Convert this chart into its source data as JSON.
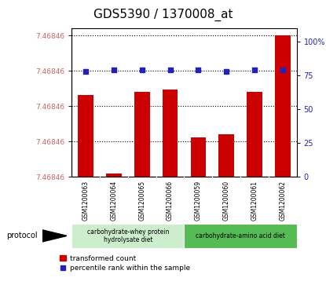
{
  "title": "GDS5390 / 1370008_at",
  "samples": [
    "GSM1200063",
    "GSM1200064",
    "GSM1200065",
    "GSM1200066",
    "GSM1200059",
    "GSM1200060",
    "GSM1200061",
    "GSM1200062"
  ],
  "bar_heights": [
    0.58,
    0.02,
    0.6,
    0.62,
    0.28,
    0.3,
    0.6,
    1.0
  ],
  "percentile_values": [
    78,
    79,
    79,
    79,
    79,
    78,
    79,
    79
  ],
  "ytick_positions": [
    0.0,
    0.25,
    0.5,
    0.75,
    1.0
  ],
  "ytick_labels": [
    "7.46846",
    "7.46846",
    "7.46846",
    "7.46846",
    "7.46846"
  ],
  "right_yticks": [
    0,
    25,
    50,
    75,
    100
  ],
  "bar_color": "#cc0000",
  "dot_color": "#2222bb",
  "xtick_bg": "#c8c8c8",
  "protocol_groups": [
    {
      "label": "carbohydrate-whey protein\nhydrolysate diet",
      "start": 0,
      "end": 4,
      "color": "#cceecc"
    },
    {
      "label": "carbohydrate-amino acid diet",
      "start": 4,
      "end": 8,
      "color": "#55bb55"
    }
  ],
  "protocol_label": "protocol",
  "legend_bar_label": "transformed count",
  "legend_dot_label": "percentile rank within the sample",
  "title_fontsize": 11
}
